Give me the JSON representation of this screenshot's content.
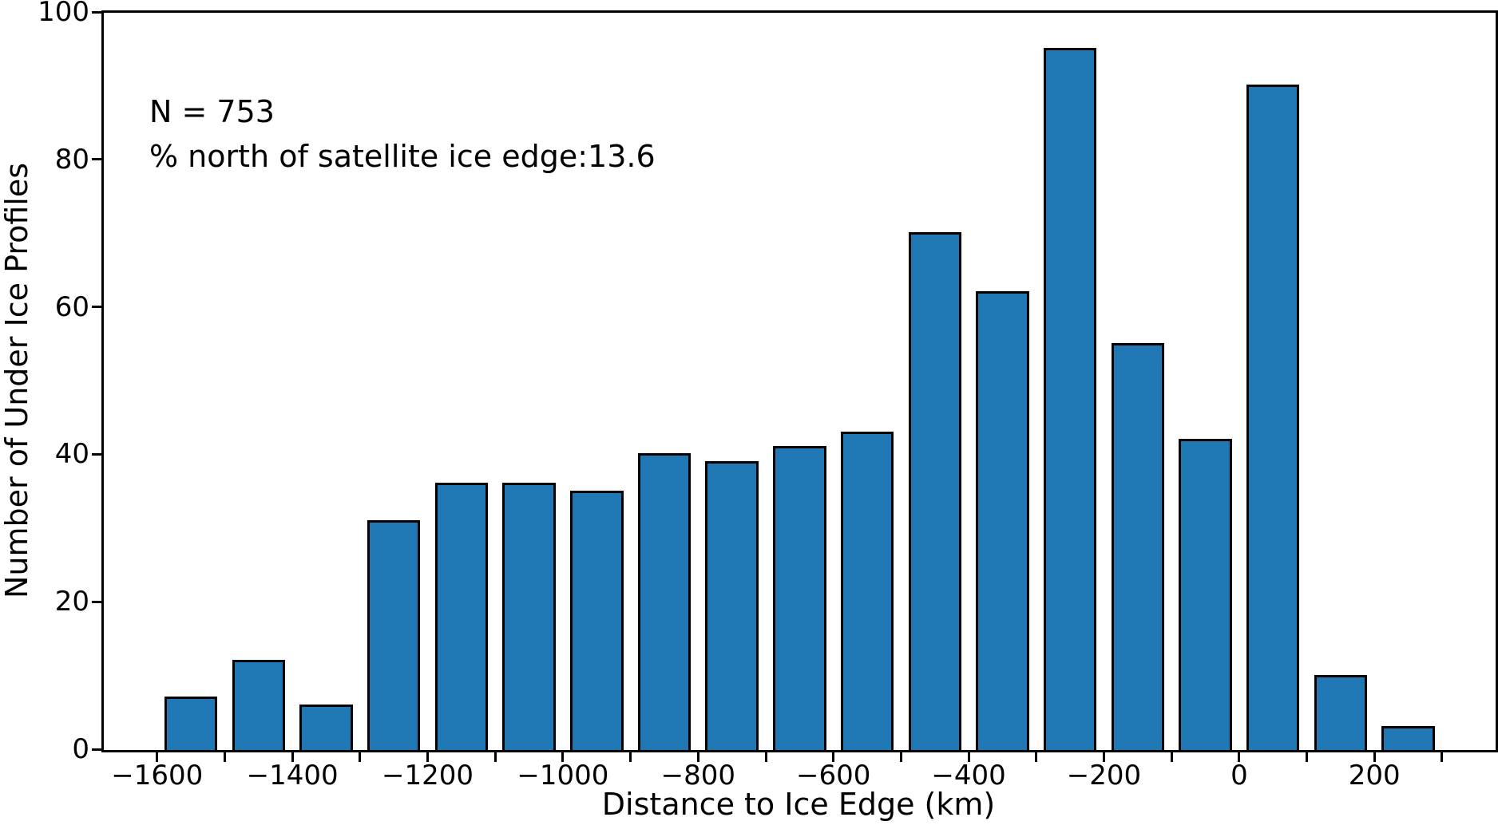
{
  "chart_data": {
    "type": "bar",
    "title": "",
    "xlabel": "Distance to Ice Edge (km)",
    "ylabel": "Number of Under Ice Profiles",
    "annotation_line1": "N = 753",
    "annotation_line2": "% north of satellite ice edge:13.6",
    "n_profiles": 753,
    "percent_north_of_ice_edge": 13.6,
    "bin_width_km": 100,
    "bin_centers_km": [
      -1550,
      -1450,
      -1350,
      -1250,
      -1150,
      -1050,
      -950,
      -850,
      -750,
      -650,
      -550,
      -450,
      -350,
      -250,
      -150,
      -50,
      50,
      150,
      250
    ],
    "values": [
      7,
      12,
      6,
      31,
      36,
      36,
      35,
      40,
      39,
      41,
      43,
      70,
      62,
      95,
      55,
      42,
      90,
      10,
      3
    ],
    "xlim_km": [
      -1680,
      378
    ],
    "ylim": [
      0,
      100
    ],
    "grid": false,
    "legend": "none",
    "bar_color": "#1f77b4",
    "bar_edge_color": "#000000",
    "bar_rwidth": 0.75,
    "x_tick_positions_km": [
      -1600,
      -1500,
      -1400,
      -1300,
      -1200,
      -1100,
      -1000,
      -900,
      -800,
      -700,
      -600,
      -500,
      -400,
      -300,
      -200,
      -100,
      0,
      100,
      200,
      300
    ],
    "x_tick_labels": [
      {
        "km": -1600,
        "label": "−1600"
      },
      {
        "km": -1400,
        "label": "−1400"
      },
      {
        "km": -1200,
        "label": "−1200"
      },
      {
        "km": -1000,
        "label": "−1000"
      },
      {
        "km": -800,
        "label": "−800"
      },
      {
        "km": -600,
        "label": "−600"
      },
      {
        "km": -400,
        "label": "−400"
      },
      {
        "km": -200,
        "label": "−200"
      },
      {
        "km": 0,
        "label": "0"
      },
      {
        "km": 200,
        "label": "200"
      }
    ],
    "y_ticks": [
      {
        "v": 0,
        "label": "0"
      },
      {
        "v": 20,
        "label": "20"
      },
      {
        "v": 40,
        "label": "40"
      },
      {
        "v": 60,
        "label": "60"
      },
      {
        "v": 80,
        "label": "80"
      },
      {
        "v": 100,
        "label": "100"
      }
    ]
  }
}
